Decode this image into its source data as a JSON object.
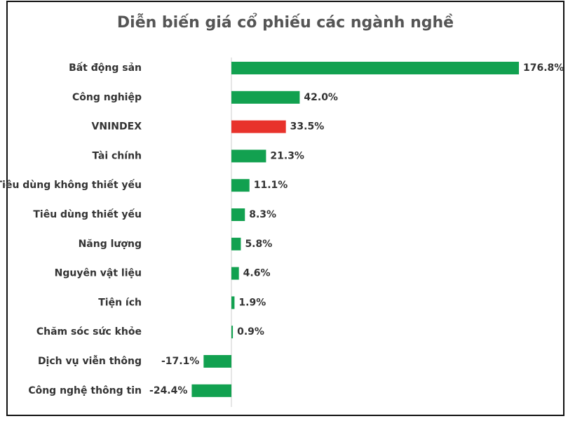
{
  "chart_data": {
    "type": "barh",
    "title": "Diễn biến giá cổ phiếu các ngành nghề",
    "categories": [
      "Bất động sản",
      "Công nghiệp",
      "VNINDEX",
      "Tài chính",
      "Tiêu dùng không thiết yếu",
      "Tiêu dùng thiết yếu",
      "Năng lượng",
      "Nguyên vật liệu",
      "Tiện ích",
      "Chăm sóc sức khỏe",
      "Dịch vụ viễn thông",
      "Công nghệ thông tin"
    ],
    "values": [
      176.8,
      42.0,
      33.5,
      21.3,
      11.1,
      8.3,
      5.8,
      4.6,
      1.9,
      0.9,
      -17.1,
      -24.4
    ],
    "value_labels": [
      "176.8%",
      "42.0%",
      "33.5%",
      "21.3%",
      "11.1%",
      "8.3%",
      "5.8%",
      "4.6%",
      "1.9%",
      "0.9%",
      "-17.1%",
      "-24.4%"
    ],
    "colors": [
      "#12a150",
      "#12a150",
      "#e8322b",
      "#12a150",
      "#12a150",
      "#12a150",
      "#12a150",
      "#12a150",
      "#12a150",
      "#12a150",
      "#12a150",
      "#12a150"
    ]
  }
}
